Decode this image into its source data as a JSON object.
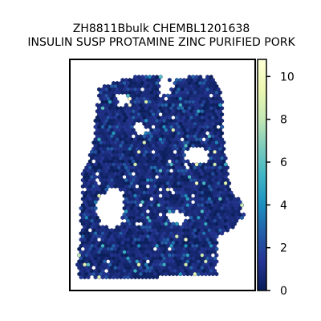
{
  "chart_data": {
    "type": "heatmap",
    "subtype": "hexbin-spatial",
    "title_lines": [
      "ZH8811Bbulk CHEMBL1201638",
      "INSULIN SUSP PROTAMINE ZINC PURIFIED PORK"
    ],
    "xlabel": "",
    "ylabel": "",
    "grid": false,
    "colormap": "YlGnBu",
    "colorbar": {
      "range": [
        0,
        10.8
      ],
      "ticks": [
        0,
        2,
        4,
        6,
        8,
        10
      ],
      "tick_labels": [
        "0",
        "2",
        "4",
        "6",
        "8",
        "10"
      ]
    },
    "value_distribution": "mostly 0-2 (dark navy) with scattered spots at 3-6 and a few at 8-10.8"
  }
}
